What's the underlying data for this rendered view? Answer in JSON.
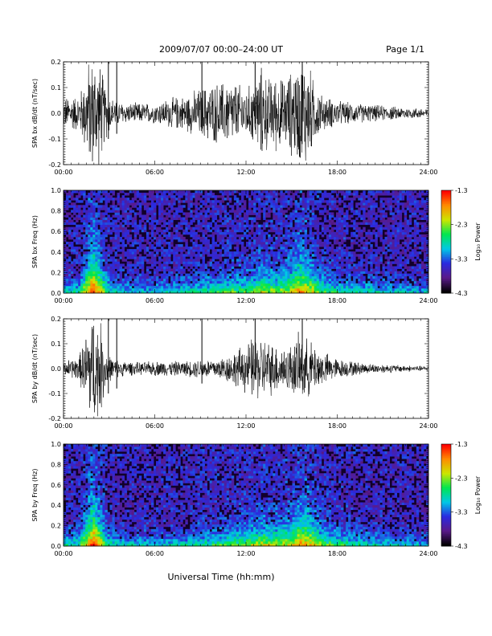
{
  "header": {
    "title": "2009/07/07  00:00–24:00 UT",
    "page": "Page 1/1"
  },
  "xlabel": "Universal Time (hh:mm)",
  "colorbar": {
    "label": "Log₁₀ Power",
    "ticks": [
      "-1.3",
      "-2.3",
      "-3.3",
      "-4.3"
    ]
  },
  "colors": {
    "trace": "#000000",
    "spectrogram_background": "#12002a",
    "colormap": [
      "#000000",
      "#5a1a8a",
      "#2a2ae0",
      "#00c8e6",
      "#00e650",
      "#cce600",
      "#ff8c00",
      "#ff0000"
    ]
  },
  "chart_data": [
    {
      "type": "line",
      "name": "bx-waveform",
      "ylabel": "SPA bx dB/dt (nT/sec)",
      "xlim": [
        0,
        24
      ],
      "ylim": [
        -0.2,
        0.2
      ],
      "xticks": [
        "00:00",
        "06:00",
        "12:00",
        "18:00",
        "24:00"
      ],
      "yticks": [
        "0.2",
        "0.1",
        "0.0",
        "-0.1",
        "-0.2"
      ],
      "envelope": {
        "hours": [
          0,
          0.5,
          1,
          1.4,
          1.7,
          2,
          2.4,
          2.8,
          3.2,
          4,
          5,
          6,
          7,
          8,
          9,
          10,
          11,
          12,
          12.5,
          13,
          13.5,
          14,
          14.5,
          15,
          15.5,
          16,
          16.5,
          17,
          18,
          19,
          20,
          21,
          22,
          23,
          24
        ],
        "amplitude": [
          0.06,
          0.07,
          0.07,
          0.14,
          0.22,
          0.22,
          0.2,
          0.1,
          0.06,
          0.04,
          0.04,
          0.04,
          0.06,
          0.07,
          0.1,
          0.12,
          0.13,
          0.1,
          0.12,
          0.18,
          0.14,
          0.15,
          0.13,
          0.17,
          0.2,
          0.22,
          0.12,
          0.07,
          0.05,
          0.04,
          0.035,
          0.03,
          0.025,
          0.022,
          0.02
        ]
      }
    },
    {
      "type": "heatmap",
      "name": "bx-spectrogram",
      "ylabel": "SPA bx Freq (Hz)",
      "xlim": [
        0,
        24
      ],
      "ylim": [
        0.0,
        1.0
      ],
      "xticks": [
        "00:00",
        "06:00",
        "12:00",
        "18:00",
        "24:00"
      ],
      "yticks": [
        "1.0",
        "0.8",
        "0.6",
        "0.4",
        "0.2",
        "0.0"
      ],
      "zlim": [
        -4.3,
        -1.3
      ],
      "activity": {
        "hours": [
          0,
          1,
          1.7,
          2,
          2.4,
          3,
          4,
          6,
          8,
          10,
          11,
          12,
          12.5,
          13,
          13.5,
          14,
          15,
          15.5,
          16,
          17,
          18,
          20,
          22,
          24
        ],
        "level": [
          0.35,
          0.4,
          0.9,
          1.0,
          0.8,
          0.45,
          0.35,
          0.35,
          0.4,
          0.5,
          0.55,
          0.55,
          0.6,
          0.7,
          0.65,
          0.6,
          0.7,
          0.85,
          0.8,
          0.55,
          0.45,
          0.4,
          0.35,
          0.3
        ]
      }
    },
    {
      "type": "line",
      "name": "by-waveform",
      "ylabel": "SPA by dB/dt (nT/sec)",
      "xlim": [
        0,
        24
      ],
      "ylim": [
        -0.2,
        0.2
      ],
      "xticks": [
        "00:00",
        "06:00",
        "12:00",
        "18:00",
        "24:00"
      ],
      "yticks": [
        "0.2",
        "0.1",
        "0.0",
        "-0.1",
        "-0.2"
      ],
      "envelope": {
        "hours": [
          0,
          0.5,
          1,
          1.4,
          1.7,
          2,
          2.4,
          2.8,
          3.2,
          4,
          5,
          6,
          7,
          8,
          9,
          10,
          11,
          12,
          12.5,
          13,
          13.5,
          14,
          14.5,
          15,
          15.5,
          16,
          16.5,
          17,
          18,
          19,
          20,
          21,
          22,
          23,
          24
        ],
        "amplitude": [
          0.03,
          0.04,
          0.05,
          0.12,
          0.22,
          0.22,
          0.2,
          0.08,
          0.04,
          0.03,
          0.025,
          0.03,
          0.03,
          0.03,
          0.04,
          0.04,
          0.06,
          0.1,
          0.13,
          0.13,
          0.11,
          0.1,
          0.09,
          0.1,
          0.14,
          0.12,
          0.1,
          0.07,
          0.04,
          0.03,
          0.02,
          0.018,
          0.015,
          0.012,
          0.01
        ]
      }
    },
    {
      "type": "heatmap",
      "name": "by-spectrogram",
      "ylabel": "SPA by Freq (Hz)",
      "xlim": [
        0,
        24
      ],
      "ylim": [
        0.0,
        1.0
      ],
      "xticks": [
        "00:00",
        "06:00",
        "12:00",
        "18:00",
        "24:00"
      ],
      "yticks": [
        "1.0",
        "0.8",
        "0.6",
        "0.4",
        "0.2",
        "0.0"
      ],
      "zlim": [
        -4.3,
        -1.3
      ],
      "activity": {
        "hours": [
          0,
          1,
          1.7,
          2,
          2.4,
          3,
          4,
          6,
          8,
          10,
          11,
          12,
          12.5,
          13,
          13.5,
          14,
          15,
          15.5,
          16,
          17,
          18,
          20,
          22,
          24
        ],
        "level": [
          0.4,
          0.45,
          0.9,
          1.0,
          0.8,
          0.45,
          0.35,
          0.35,
          0.4,
          0.5,
          0.55,
          0.6,
          0.65,
          0.7,
          0.65,
          0.65,
          0.7,
          0.85,
          0.85,
          0.6,
          0.5,
          0.4,
          0.35,
          0.3
        ]
      }
    }
  ]
}
